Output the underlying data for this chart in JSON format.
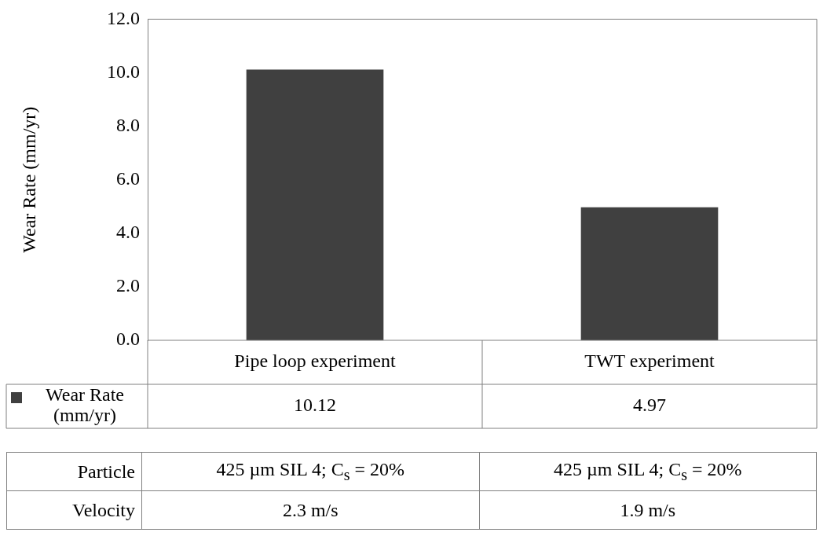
{
  "chart_data": {
    "type": "bar",
    "ylabel": "Wear Rate (mm/yr)",
    "categories": [
      "Pipe loop experiment",
      "TWT experiment"
    ],
    "series": [
      {
        "name": "Wear Rate (mm/yr)",
        "color": "#404040",
        "values": [
          10.12,
          4.97
        ]
      }
    ],
    "ylim": [
      0,
      12
    ],
    "yticks": [
      {
        "value": 0,
        "label": "0.0"
      },
      {
        "value": 2,
        "label": "2.0"
      },
      {
        "value": 4,
        "label": "4.0"
      },
      {
        "value": 6,
        "label": "6.0"
      },
      {
        "value": 8,
        "label": "8.0"
      },
      {
        "value": 10,
        "label": "10.0"
      },
      {
        "value": 12,
        "label": "12.0"
      }
    ],
    "grid": false,
    "legend": "bottom",
    "data_labels": true,
    "annotations": [
      "Particle",
      "425 µm SIL 4; C$_{s}$ = 20%",
      "425 µm SIL 4; C$_{s}$ = 20%",
      "Velocity",
      "2.3 m/s",
      "1.9 m/s"
    ]
  }
}
